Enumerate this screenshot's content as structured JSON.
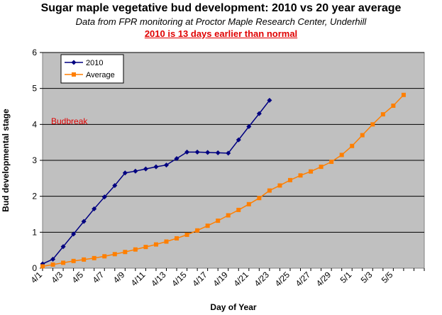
{
  "chart_data": {
    "type": "line",
    "title": "Sugar maple vegetative bud development: 2010 vs 20 year average",
    "subtitle": "Data from FPR monitoring at Proctor Maple Research Center, Underhill",
    "note": "2010 is 13 days earlier than normal",
    "xlabel": "Day of Year",
    "ylabel": "Bud developmental stage",
    "ylim": [
      0,
      6
    ],
    "yticks": [
      "0",
      "1",
      "2",
      "3",
      "4",
      "5",
      "6"
    ],
    "xtick_labels": [
      "4/1",
      "4/3",
      "4/5",
      "4/7",
      "4/9",
      "4/11",
      "4/13",
      "4/15",
      "4/17",
      "4/19",
      "4/21",
      "4/23",
      "4/25",
      "4/27",
      "4/29",
      "5/1",
      "5/3",
      "5/5"
    ],
    "annotation": "Budbreak",
    "legend_position": "top-left",
    "series": [
      {
        "name": "2010",
        "color": "#000080",
        "marker": "diamond",
        "x": [
          1,
          2,
          3,
          4,
          5,
          6,
          7,
          8,
          9,
          10,
          11,
          12,
          13,
          14,
          15,
          16,
          17,
          18,
          19,
          20,
          21,
          22,
          23
        ],
        "values": [
          0.12,
          0.25,
          0.6,
          0.95,
          1.3,
          1.65,
          1.98,
          2.3,
          2.65,
          2.7,
          2.76,
          2.82,
          2.87,
          3.05,
          3.23,
          3.23,
          3.22,
          3.21,
          3.2,
          3.57,
          3.94,
          4.3,
          4.67
        ]
      },
      {
        "name": "Average",
        "color": "#ff7f00",
        "marker": "square",
        "x": [
          1,
          2,
          3,
          4,
          5,
          6,
          7,
          8,
          9,
          10,
          11,
          12,
          13,
          14,
          15,
          16,
          17,
          18,
          19,
          20,
          21,
          22,
          23,
          24,
          25,
          26,
          27,
          28,
          29,
          30,
          31,
          32,
          33,
          34,
          35,
          36
        ],
        "values": [
          0.05,
          0.1,
          0.15,
          0.2,
          0.24,
          0.28,
          0.33,
          0.39,
          0.45,
          0.52,
          0.59,
          0.66,
          0.74,
          0.83,
          0.93,
          1.05,
          1.18,
          1.32,
          1.47,
          1.62,
          1.78,
          1.95,
          2.16,
          2.3,
          2.45,
          2.58,
          2.69,
          2.82,
          2.96,
          3.15,
          3.4,
          3.7,
          4.0,
          4.28,
          4.52,
          4.82
        ]
      }
    ]
  }
}
